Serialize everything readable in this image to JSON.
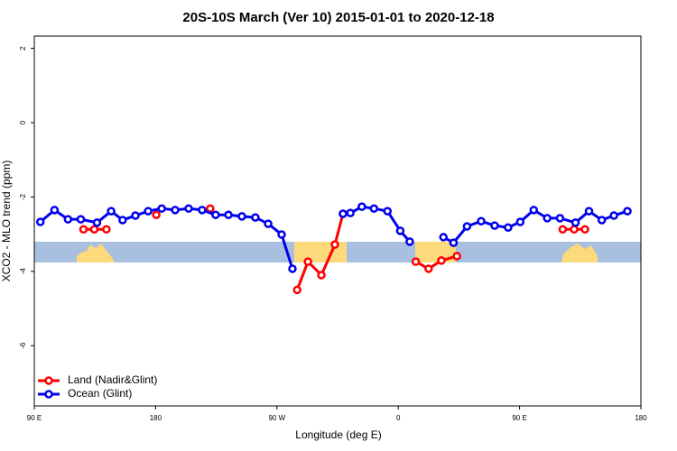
{
  "chart_data": {
    "type": "line",
    "title": "20S-10S March (Ver 10)   2015-01-01 to 2020-12-18",
    "x_label": "Longitude (deg E)",
    "y_label": "XCO2 - MLO trend (ppm)",
    "xlim": [
      90,
      540
    ],
    "xticks": [
      {
        "value": 90,
        "label": "90 E"
      },
      180,
      {
        "value": 270,
        "label": "90 W"
      },
      {
        "value": 360,
        "label": "0"
      },
      {
        "value": 450,
        "label": "90 E"
      },
      {
        "value": 540,
        "label": "180"
      }
    ],
    "ylim": [
      -7.62,
      2.33
    ],
    "yticks": [
      2,
      0,
      -2,
      -4,
      -6
    ],
    "series": [
      {
        "name": "Land (Nadir&Glint)",
        "color": "#ff0000",
        "x": [
          126.5,
          134.5,
          143.5,
          162,
          180.5,
          200,
          220.5,
          250,
          285,
          293,
          303,
          313,
          319,
          350,
          373,
          382.5,
          392,
          403.5,
          440,
          482,
          490.5,
          498.5
        ],
        "values": [
          -2.87,
          -2.87,
          -2.87,
          null,
          -2.48,
          null,
          -2.31,
          null,
          -4.5,
          -3.74,
          -4.1,
          -3.28,
          -2.45,
          null,
          -3.74,
          -3.93,
          -3.71,
          -3.59,
          null,
          -2.87,
          -2.87,
          -2.87
        ]
      },
      {
        "name": "Ocean (Glint)",
        "color": "#0000ee",
        "x": [
          94.5,
          105,
          115,
          124.5,
          136.5,
          147,
          155.5,
          165,
          174.5,
          184.5,
          194.5,
          204.5,
          214.5,
          224.5,
          234,
          244,
          254,
          263.5,
          273.5,
          281.5,
          300,
          319,
          324.5,
          333,
          342,
          352,
          361.5,
          368.5,
          380,
          393.5,
          401,
          411,
          421.5,
          431.5,
          441.5,
          450.5,
          460.5,
          470.5,
          480,
          491.5,
          501.5,
          511,
          520,
          530
        ],
        "values": [
          -2.67,
          -2.35,
          -2.6,
          -2.6,
          -2.69,
          -2.38,
          -2.62,
          -2.5,
          -2.38,
          -2.31,
          -2.35,
          -2.31,
          -2.35,
          -2.48,
          -2.48,
          -2.52,
          -2.55,
          -2.72,
          -3.01,
          -3.93,
          null,
          -2.45,
          -2.43,
          -2.26,
          -2.31,
          -2.38,
          -2.91,
          -3.2,
          null,
          -3.08,
          -3.23,
          -2.79,
          -2.65,
          -2.77,
          -2.82,
          -2.67,
          -2.35,
          -2.57,
          -2.57,
          -2.69,
          -2.38,
          -2.62,
          -2.5,
          -2.38
        ]
      }
    ]
  }
}
